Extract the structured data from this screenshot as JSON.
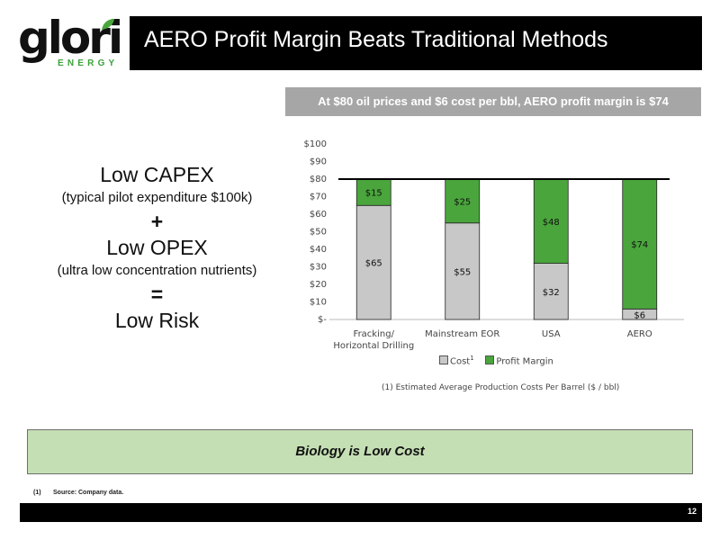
{
  "logo": {
    "word": "glori",
    "sub": "ENERGY"
  },
  "title": "AERO Profit Margin Beats Traditional Methods",
  "headline": "At $80 oil prices and $6 cost per bbl, AERO profit margin is $74",
  "left_panel": {
    "line1": "Low CAPEX",
    "line2": "(typical pilot expenditure $100k)",
    "op1": "+",
    "line3": "Low OPEX",
    "line4": "(ultra low concentration nutrients)",
    "op2": "=",
    "line5": "Low Risk"
  },
  "chart_data": {
    "type": "bar",
    "stacked": true,
    "categories": [
      "Fracking/ Horizontal Drilling",
      "Mainstream EOR",
      "USA",
      "AERO"
    ],
    "series": [
      {
        "name": "Cost",
        "values": [
          65,
          55,
          32,
          6
        ],
        "labels": [
          "$65",
          "$55",
          "$32",
          "$6"
        ],
        "color": "#c8c8c8"
      },
      {
        "name": "Profit Margin",
        "values": [
          15,
          25,
          48,
          74
        ],
        "labels": [
          "$15",
          "$25",
          "$48",
          "$74"
        ],
        "color": "#4aa63c"
      }
    ],
    "ylim": [
      0,
      100
    ],
    "yticks": [
      {
        "value": 0,
        "label": "$-"
      },
      {
        "value": 10,
        "label": "$10"
      },
      {
        "value": 20,
        "label": "$20"
      },
      {
        "value": 30,
        "label": "$30"
      },
      {
        "value": 40,
        "label": "$40"
      },
      {
        "value": 50,
        "label": "$50"
      },
      {
        "value": 60,
        "label": "$60"
      },
      {
        "value": 70,
        "label": "$70"
      },
      {
        "value": 80,
        "label": "$80"
      },
      {
        "value": 90,
        "label": "$90"
      },
      {
        "value": 100,
        "label": "$100"
      }
    ],
    "reference_line": 80,
    "legend_position": "bottom",
    "grid": false,
    "note": "(1) Estimated Average Production Costs Per Barrel ($ / bbl)",
    "legend_sup": "1"
  },
  "callout": "Biology is Low Cost",
  "footnote": {
    "num": "(1)",
    "text": "Source: Company data."
  },
  "page_number": "12",
  "colors": {
    "accent_green": "#4aa63c",
    "callout_bg": "#c5dfb4",
    "headline_bg": "#a6a6a6"
  }
}
